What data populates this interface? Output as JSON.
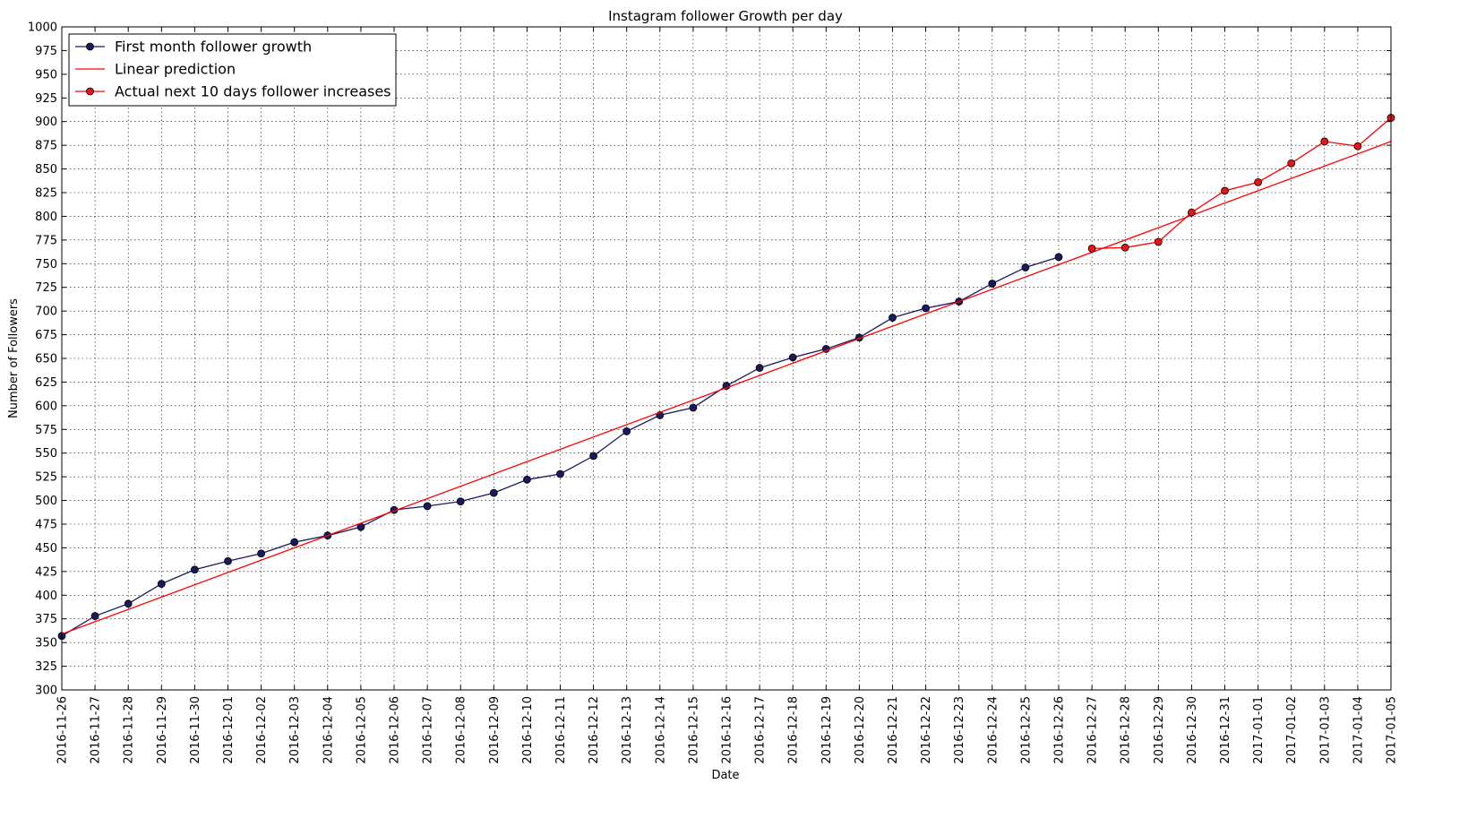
{
  "chart_data": {
    "type": "line",
    "title": "Instagram follower Growth per day",
    "xlabel": "Date",
    "ylabel": "Number of Followers",
    "ylim": [
      300,
      1000
    ],
    "yticks": [
      300,
      325,
      350,
      375,
      400,
      425,
      450,
      475,
      500,
      525,
      550,
      575,
      600,
      625,
      650,
      675,
      700,
      725,
      750,
      775,
      800,
      825,
      850,
      875,
      900,
      925,
      950,
      975,
      1000
    ],
    "x": [
      "2016-11-26",
      "2016-11-27",
      "2016-11-28",
      "2016-11-29",
      "2016-11-30",
      "2016-12-01",
      "2016-12-02",
      "2016-12-03",
      "2016-12-04",
      "2016-12-05",
      "2016-12-06",
      "2016-12-07",
      "2016-12-08",
      "2016-12-09",
      "2016-12-10",
      "2016-12-11",
      "2016-12-12",
      "2016-12-13",
      "2016-12-14",
      "2016-12-15",
      "2016-12-16",
      "2016-12-17",
      "2016-12-18",
      "2016-12-19",
      "2016-12-20",
      "2016-12-21",
      "2016-12-22",
      "2016-12-23",
      "2016-12-24",
      "2016-12-25",
      "2016-12-26",
      "2016-12-27",
      "2016-12-28",
      "2016-12-29",
      "2016-12-30",
      "2016-12-31",
      "2017-01-01",
      "2017-01-02",
      "2017-01-03",
      "2017-01-04",
      "2017-01-05"
    ],
    "grid": true,
    "legend_position": "top-left",
    "series": [
      {
        "name": "First month follower growth",
        "color": "#1a1a5e",
        "marker": "circle",
        "x": [
          "2016-11-26",
          "2016-11-27",
          "2016-11-28",
          "2016-11-29",
          "2016-11-30",
          "2016-12-01",
          "2016-12-02",
          "2016-12-03",
          "2016-12-04",
          "2016-12-05",
          "2016-12-06",
          "2016-12-07",
          "2016-12-08",
          "2016-12-09",
          "2016-12-10",
          "2016-12-11",
          "2016-12-12",
          "2016-12-13",
          "2016-12-14",
          "2016-12-15",
          "2016-12-16",
          "2016-12-17",
          "2016-12-18",
          "2016-12-19",
          "2016-12-20",
          "2016-12-21",
          "2016-12-22",
          "2016-12-23",
          "2016-12-24",
          "2016-12-25",
          "2016-12-26"
        ],
        "values": [
          357,
          378,
          391,
          412,
          427,
          436,
          444,
          456,
          463,
          472,
          490,
          494,
          499,
          508,
          522,
          528,
          547,
          573,
          590,
          598,
          621,
          640,
          651,
          660,
          672,
          693,
          703,
          710,
          729,
          746,
          757
        ]
      },
      {
        "name": "Linear prediction",
        "color": "#ff0000",
        "marker": "none",
        "x": [
          "2016-11-26",
          "2017-01-05"
        ],
        "values": [
          359,
          879
        ]
      },
      {
        "name": "Actual next 10 days follower increases",
        "color": "#ff0000",
        "marker": "circle",
        "x": [
          "2016-12-27",
          "2016-12-28",
          "2016-12-29",
          "2016-12-30",
          "2016-12-31",
          "2017-01-01",
          "2017-01-02",
          "2017-01-03",
          "2017-01-04",
          "2017-01-05"
        ],
        "values": [
          766,
          767,
          773,
          804,
          827,
          836,
          856,
          879,
          874,
          904
        ]
      }
    ]
  }
}
